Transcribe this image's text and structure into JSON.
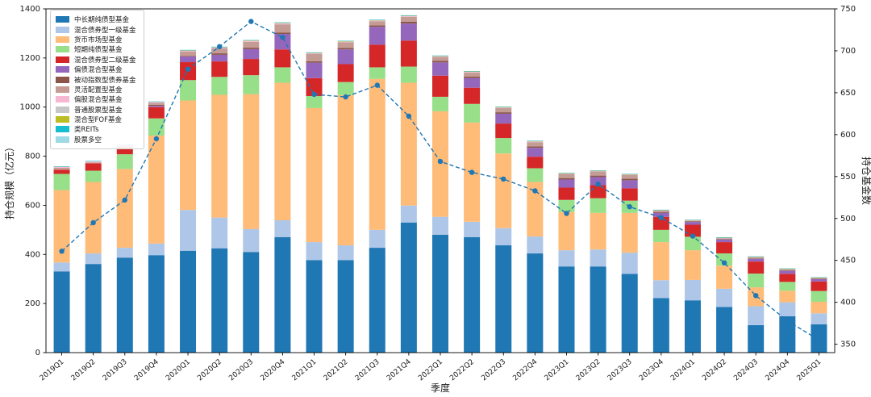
{
  "chart_data": {
    "type": "bar",
    "stacked": true,
    "has_line_overlay": true,
    "title": "",
    "xlabel": "季度",
    "ylabel_left": "持仓规模（亿元）",
    "ylabel_right": "持仓基金数",
    "ylim_left": [
      0,
      1400
    ],
    "yticks_left": [
      0,
      200,
      400,
      600,
      800,
      1000,
      1200,
      1400
    ],
    "ylim_right": [
      340,
      750
    ],
    "yticks_right": [
      350,
      400,
      450,
      500,
      550,
      600,
      650,
      700,
      750
    ],
    "grid": false,
    "legend_position": "upper left",
    "categories": [
      "2019Q1",
      "2019Q2",
      "2019Q3",
      "2019Q4",
      "2020Q1",
      "2020Q2",
      "2020Q3",
      "2020Q4",
      "2021Q1",
      "2021Q2",
      "2021Q3",
      "2021Q4",
      "2022Q1",
      "2022Q2",
      "2022Q3",
      "2022Q4",
      "2023Q1",
      "2023Q2",
      "2023Q3",
      "2023Q4",
      "2024Q1",
      "2024Q2",
      "2024Q3",
      "2024Q4",
      "2025Q1"
    ],
    "series": [
      {
        "name": "中长期纯债型基金",
        "color": "#1f77b4",
        "values": [
          331,
          361,
          387,
          397,
          415,
          425,
          410,
          470,
          377,
          377,
          427,
          530,
          480,
          470,
          437,
          404,
          351,
          351,
          321,
          222,
          213,
          186,
          112,
          148,
          115
        ]
      },
      {
        "name": "混合债券型一级基金",
        "color": "#aec7e8",
        "values": [
          36,
          43,
          40,
          47,
          166,
          125,
          93,
          69,
          73,
          60,
          73,
          69,
          73,
          63,
          70,
          69,
          66,
          69,
          86,
          73,
          83,
          74,
          77,
          57,
          45
        ]
      },
      {
        "name": "货币市场型基金",
        "color": "#ffbb78",
        "values": [
          295,
          291,
          321,
          440,
          446,
          500,
          550,
          560,
          546,
          612,
          615,
          500,
          430,
          404,
          304,
          222,
          156,
          149,
          162,
          155,
          121,
          94,
          77,
          47,
          47
        ]
      },
      {
        "name": "短期纯债型基金",
        "color": "#98df8a",
        "values": [
          66,
          46,
          60,
          70,
          83,
          73,
          77,
          63,
          49,
          53,
          47,
          66,
          59,
          76,
          63,
          56,
          49,
          60,
          50,
          50,
          55,
          50,
          56,
          36,
          44
        ]
      },
      {
        "name": "混合债券型二级基金",
        "color": "#d62728",
        "values": [
          17,
          30,
          23,
          46,
          73,
          63,
          66,
          73,
          73,
          73,
          92,
          106,
          86,
          66,
          59,
          47,
          50,
          53,
          50,
          53,
          49,
          46,
          49,
          33,
          39
        ]
      },
      {
        "name": "偏债混合型基金",
        "color": "#9467bd",
        "values": [
          0,
          0,
          0,
          5,
          23,
          27,
          40,
          63,
          63,
          60,
          73,
          69,
          54,
          39,
          40,
          36,
          33,
          33,
          33,
          16,
          11,
          11,
          11,
          12,
          9
        ]
      },
      {
        "name": "被动指数型债券基金",
        "color": "#8c564b",
        "values": [
          0,
          0,
          0,
          4,
          2,
          6,
          6,
          6,
          6,
          6,
          6,
          8,
          6,
          6,
          6,
          6,
          6,
          6,
          6,
          4,
          2,
          2,
          2,
          2,
          2
        ]
      },
      {
        "name": "灵活配置型基金",
        "color": "#c49c94",
        "values": [
          8,
          4,
          10,
          8,
          18,
          20,
          24,
          33,
          30,
          23,
          17,
          20,
          16,
          17,
          17,
          17,
          17,
          17,
          16,
          5,
          3,
          3,
          4,
          4,
          2
        ]
      },
      {
        "name": "偏股混合型基金",
        "color": "#f7b6d2",
        "values": [
          3,
          3,
          3,
          3,
          3,
          3,
          3,
          3,
          2,
          2,
          2,
          2,
          2,
          2,
          2,
          2,
          1,
          1,
          1,
          1,
          1,
          1,
          1,
          1,
          1
        ]
      },
      {
        "name": "普通股票型基金",
        "color": "#c7c7c7",
        "values": [
          2,
          2,
          2,
          2,
          2,
          2,
          2,
          3,
          2,
          2,
          2,
          2,
          2,
          2,
          2,
          2,
          1,
          1,
          1,
          1,
          1,
          1,
          1,
          1,
          1
        ]
      },
      {
        "name": "混合型FOF基金",
        "color": "#bcbd22",
        "values": [
          0,
          0,
          0,
          0,
          1,
          1,
          1,
          1,
          1,
          1,
          1,
          1,
          1,
          1,
          1,
          1,
          1,
          1,
          1,
          1,
          1,
          1,
          1,
          1,
          1
        ]
      },
      {
        "name": "类REITs",
        "color": "#17becf",
        "values": [
          1,
          1,
          1,
          1,
          1,
          1,
          1,
          1,
          1,
          1,
          1,
          1,
          1,
          1,
          1,
          1,
          1,
          1,
          1,
          1,
          1,
          1,
          1,
          1,
          1
        ]
      },
      {
        "name": "股票多空",
        "color": "#9edae5",
        "values": [
          0,
          0,
          0,
          0,
          0,
          0,
          0,
          0,
          0,
          0,
          0,
          0,
          0,
          0,
          0,
          0,
          0,
          0,
          0,
          0,
          0,
          0,
          0,
          0,
          0
        ]
      }
    ],
    "line_series": {
      "name": "持仓基金数",
      "axis": "right",
      "color": "#1f77b4",
      "style": "dashed",
      "marker": "circle",
      "values": [
        461,
        495,
        522,
        595,
        678,
        705,
        735,
        716,
        648,
        645,
        659,
        622,
        568,
        555,
        547,
        533,
        506,
        541,
        514,
        501,
        479,
        447,
        408,
        378,
        355
      ]
    }
  }
}
